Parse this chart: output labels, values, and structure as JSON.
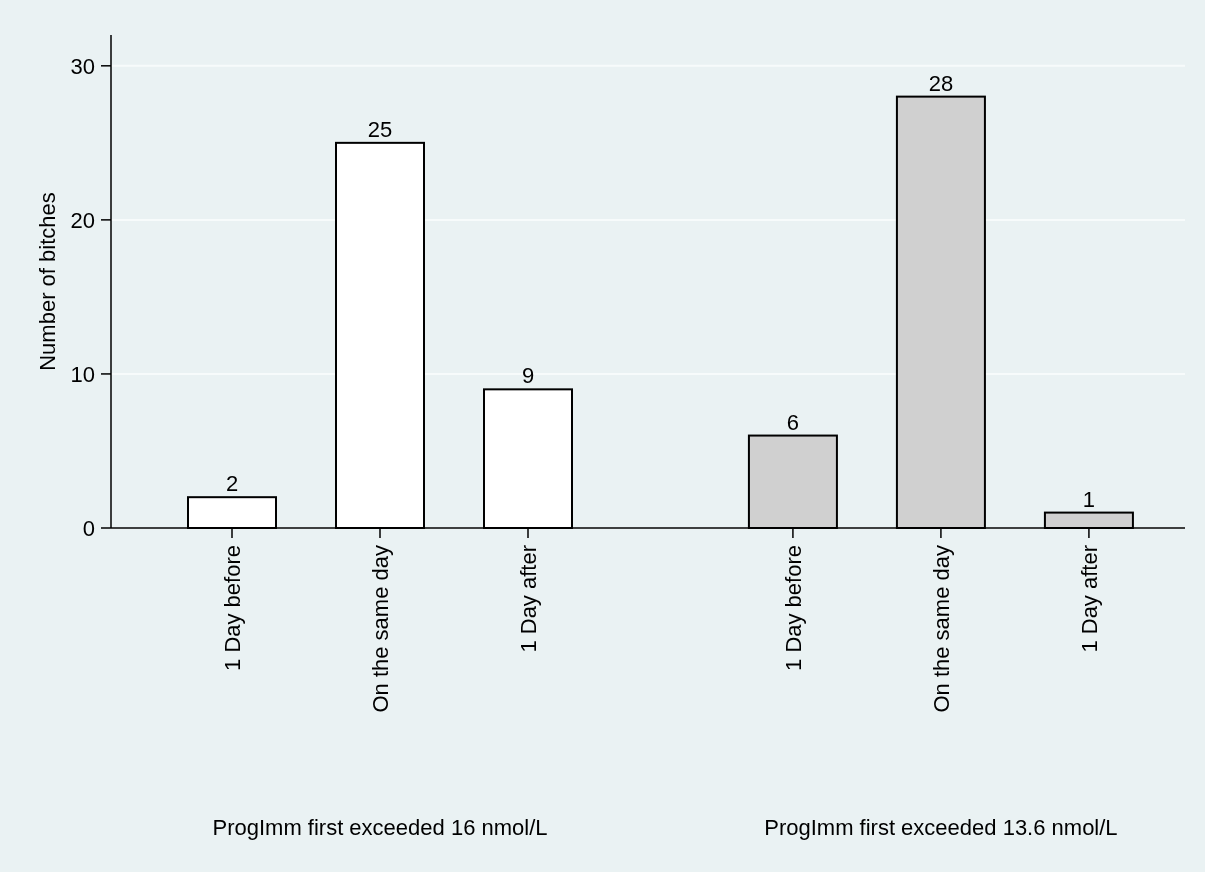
{
  "chart_data": {
    "type": "bar",
    "ylabel": "Number of bitches",
    "categories": [
      "1 Day before",
      "On the same day",
      "1 Day after",
      "1 Day before",
      "On the same day",
      "1 Day after"
    ],
    "values": [
      2,
      25,
      9,
      6,
      28,
      1
    ],
    "colors": [
      "#ffffff",
      "#ffffff",
      "#ffffff",
      "#d0d0d0",
      "#d0d0d0",
      "#d0d0d0"
    ],
    "annotations": [
      "ProgImm first exceeded 16 nmol/L",
      "ProgImm first exceeded 13.6 nmol/L"
    ],
    "ylim": [
      0,
      32
    ],
    "yticks": [
      0,
      10,
      20,
      30
    ],
    "grid": "y",
    "data_labels": true
  }
}
